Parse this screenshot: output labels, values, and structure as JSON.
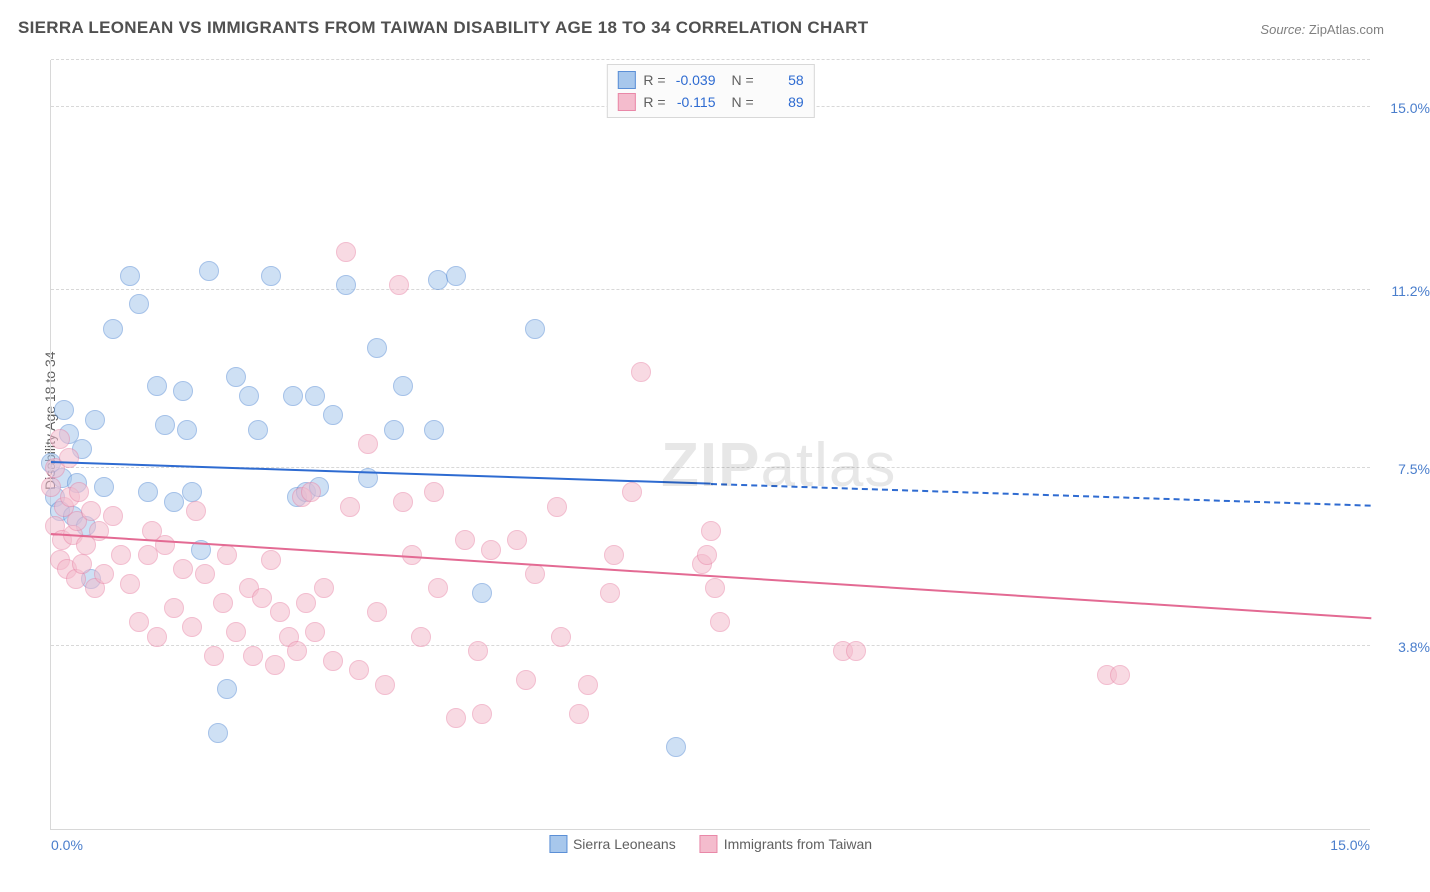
{
  "title": "SIERRA LEONEAN VS IMMIGRANTS FROM TAIWAN DISABILITY AGE 18 TO 34 CORRELATION CHART",
  "source_label": "Source:",
  "source_value": "ZipAtlas.com",
  "watermark_a": "ZIP",
  "watermark_b": "atlas",
  "chart": {
    "type": "scatter",
    "background_color": "#ffffff",
    "grid_color": "#d8d8d8",
    "xlim": [
      0,
      15
    ],
    "ylim": [
      0,
      16
    ],
    "x_tick_left": "0.0%",
    "x_tick_right": "15.0%",
    "x_tick_color_left": "#4a7ecc",
    "x_tick_color_right": "#4a7ecc",
    "y_ticks": [
      {
        "value": 3.8,
        "label": "3.8%",
        "color": "#4a7ecc"
      },
      {
        "value": 7.5,
        "label": "7.5%",
        "color": "#4a7ecc"
      },
      {
        "value": 11.2,
        "label": "11.2%",
        "color": "#4a7ecc"
      },
      {
        "value": 15.0,
        "label": "15.0%",
        "color": "#4a7ecc"
      }
    ],
    "y_axis_label": "Disability Age 18 to 34",
    "label_fontsize": 14,
    "title_fontsize": 17,
    "marker_radius": 10,
    "marker_opacity": 0.55,
    "series": [
      {
        "name": "Sierra Leoneans",
        "fill": "#a7c7ec",
        "stroke": "#5b8fd6",
        "trend_color": "#2e6bd1",
        "R": "-0.039",
        "N": "58",
        "trend_y_start": 7.6,
        "trend_y_end": 6.7,
        "solid_x_end": 7.5,
        "points": [
          [
            0.0,
            7.6
          ],
          [
            0.05,
            6.9
          ],
          [
            0.1,
            6.6
          ],
          [
            0.12,
            7.3
          ],
          [
            0.15,
            8.7
          ],
          [
            0.2,
            8.2
          ],
          [
            0.25,
            6.5
          ],
          [
            0.3,
            7.2
          ],
          [
            0.35,
            7.9
          ],
          [
            0.4,
            6.3
          ],
          [
            0.45,
            5.2
          ],
          [
            0.5,
            8.5
          ],
          [
            0.6,
            7.1
          ],
          [
            0.7,
            10.4
          ],
          [
            0.9,
            11.5
          ],
          [
            1.0,
            10.9
          ],
          [
            1.1,
            7.0
          ],
          [
            1.2,
            9.2
          ],
          [
            1.3,
            8.4
          ],
          [
            1.4,
            6.8
          ],
          [
            1.5,
            9.1
          ],
          [
            1.55,
            8.3
          ],
          [
            1.6,
            7.0
          ],
          [
            1.7,
            5.8
          ],
          [
            1.8,
            11.6
          ],
          [
            1.9,
            2.0
          ],
          [
            2.0,
            2.9
          ],
          [
            2.1,
            9.4
          ],
          [
            2.25,
            9.0
          ],
          [
            2.35,
            8.3
          ],
          [
            2.5,
            11.5
          ],
          [
            2.75,
            9.0
          ],
          [
            2.8,
            6.9
          ],
          [
            2.9,
            7.0
          ],
          [
            3.0,
            9.0
          ],
          [
            3.05,
            7.1
          ],
          [
            3.2,
            8.6
          ],
          [
            3.35,
            11.3
          ],
          [
            3.6,
            7.3
          ],
          [
            3.7,
            10.0
          ],
          [
            3.9,
            8.3
          ],
          [
            4.0,
            9.2
          ],
          [
            4.35,
            8.3
          ],
          [
            4.4,
            11.4
          ],
          [
            4.6,
            11.5
          ],
          [
            4.9,
            4.9
          ],
          [
            5.5,
            10.4
          ],
          [
            7.1,
            1.7
          ]
        ]
      },
      {
        "name": "Immigrants from Taiwan",
        "fill": "#f4bccd",
        "stroke": "#e988a8",
        "trend_color": "#e36a93",
        "R": "-0.115",
        "N": "89",
        "trend_y_start": 6.1,
        "trend_y_end": 4.35,
        "solid_x_end": 15.0,
        "points": [
          [
            0.0,
            7.1
          ],
          [
            0.05,
            6.3
          ],
          [
            0.05,
            7.5
          ],
          [
            0.1,
            5.6
          ],
          [
            0.1,
            8.1
          ],
          [
            0.12,
            6.0
          ],
          [
            0.15,
            6.7
          ],
          [
            0.18,
            5.4
          ],
          [
            0.2,
            7.7
          ],
          [
            0.22,
            6.9
          ],
          [
            0.25,
            6.1
          ],
          [
            0.28,
            5.2
          ],
          [
            0.3,
            6.4
          ],
          [
            0.32,
            7.0
          ],
          [
            0.35,
            5.5
          ],
          [
            0.4,
            5.9
          ],
          [
            0.45,
            6.6
          ],
          [
            0.5,
            5.0
          ],
          [
            0.55,
            6.2
          ],
          [
            0.6,
            5.3
          ],
          [
            0.7,
            6.5
          ],
          [
            0.8,
            5.7
          ],
          [
            0.9,
            5.1
          ],
          [
            1.0,
            4.3
          ],
          [
            1.1,
            5.7
          ],
          [
            1.15,
            6.2
          ],
          [
            1.2,
            4.0
          ],
          [
            1.3,
            5.9
          ],
          [
            1.4,
            4.6
          ],
          [
            1.5,
            5.4
          ],
          [
            1.6,
            4.2
          ],
          [
            1.65,
            6.6
          ],
          [
            1.75,
            5.3
          ],
          [
            1.85,
            3.6
          ],
          [
            1.95,
            4.7
          ],
          [
            2.0,
            5.7
          ],
          [
            2.1,
            4.1
          ],
          [
            2.25,
            5.0
          ],
          [
            2.3,
            3.6
          ],
          [
            2.4,
            4.8
          ],
          [
            2.5,
            5.6
          ],
          [
            2.55,
            3.4
          ],
          [
            2.6,
            4.5
          ],
          [
            2.7,
            4.0
          ],
          [
            2.85,
            6.9
          ],
          [
            2.8,
            3.7
          ],
          [
            2.9,
            4.7
          ],
          [
            2.95,
            7.0
          ],
          [
            3.0,
            4.1
          ],
          [
            3.1,
            5.0
          ],
          [
            3.2,
            3.5
          ],
          [
            3.35,
            12.0
          ],
          [
            3.4,
            6.7
          ],
          [
            3.5,
            3.3
          ],
          [
            3.6,
            8.0
          ],
          [
            3.7,
            4.5
          ],
          [
            3.8,
            3.0
          ],
          [
            3.95,
            11.3
          ],
          [
            4.0,
            6.8
          ],
          [
            4.1,
            5.7
          ],
          [
            4.2,
            4.0
          ],
          [
            4.35,
            7.0
          ],
          [
            4.4,
            5.0
          ],
          [
            4.6,
            2.3
          ],
          [
            4.7,
            6.0
          ],
          [
            4.85,
            3.7
          ],
          [
            4.9,
            2.4
          ],
          [
            5.0,
            5.8
          ],
          [
            5.3,
            6.0
          ],
          [
            5.4,
            3.1
          ],
          [
            5.5,
            5.3
          ],
          [
            5.75,
            6.7
          ],
          [
            5.8,
            4.0
          ],
          [
            6.0,
            2.4
          ],
          [
            6.1,
            3.0
          ],
          [
            6.35,
            4.9
          ],
          [
            6.4,
            5.7
          ],
          [
            6.6,
            7.0
          ],
          [
            6.7,
            9.5
          ],
          [
            7.4,
            5.5
          ],
          [
            7.45,
            5.7
          ],
          [
            7.5,
            6.2
          ],
          [
            7.55,
            5.0
          ],
          [
            7.6,
            4.3
          ],
          [
            9.0,
            3.7
          ],
          [
            9.15,
            3.7
          ],
          [
            12.0,
            3.2
          ],
          [
            12.15,
            3.2
          ]
        ]
      }
    ]
  },
  "legend_bottom": [
    {
      "label": "Sierra Leoneans",
      "fill": "#a7c7ec",
      "stroke": "#5b8fd6"
    },
    {
      "label": "Immigrants from Taiwan",
      "fill": "#f4bccd",
      "stroke": "#e988a8"
    }
  ]
}
